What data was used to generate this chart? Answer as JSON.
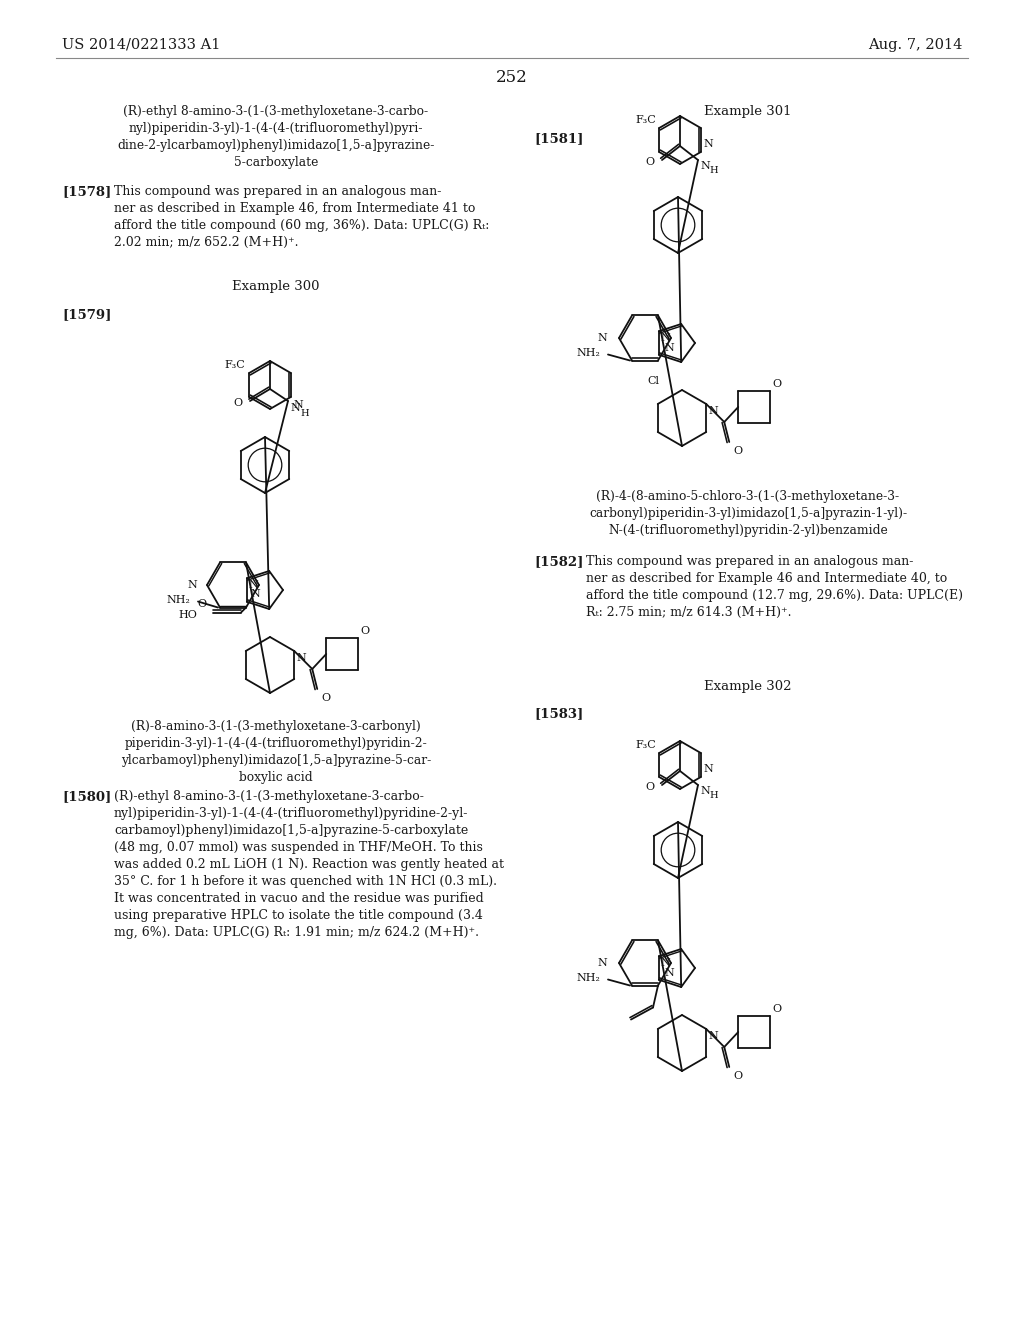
{
  "bg_color": "#ffffff",
  "header_left": "US 2014/0221333 A1",
  "header_right": "Aug. 7, 2014",
  "page_number": "252",
  "font_color": "#1a1a1a",
  "left_compound_name_top": "(R)-ethyl 8-amino-3-(1-(3-methyloxetane-3-carbo-\nnyl)piperidin-3-yl)-1-(4-(4-(trifluoromethyl)pyri-\ndine-2-ylcarbamoyl)phenyl)imidazo[1,5-a]pyrazine-\n5-carboxylate",
  "ref_1578_label": "[1578]",
  "ref_1578_text": "This compound was prepared in an analogous man-\nner as described in Example 46, from Intermediate 41 to\nafford the title compound (60 mg, 36%). Data: UPLC(G) Rₜ:\n2.02 min; m/z 652.2 (M+H)⁺.",
  "example_300": "Example 300",
  "ref_1579_label": "[1579]",
  "left_compound_name_bottom": "(R)-8-amino-3-(1-(3-methyloxetane-3-carbonyl)\npiperidin-3-yl)-1-(4-(4-(trifluoromethyl)pyridin-2-\nylcarbamoyl)phenyl)imidazo[1,5-a]pyrazine-5-car-\nboxylic acid",
  "ref_1580_label": "[1580]",
  "ref_1580_text": "(R)-ethyl 8-amino-3-(1-(3-methyloxetane-3-carbo-\nnyl)piperidin-3-yl)-1-(4-(4-(trifluoromethyl)pyridine-2-yl-\ncarbamoyl)phenyl)imidazo[1,5-a]pyrazine-5-carboxylate\n(48 mg, 0.07 mmol) was suspended in THF/MeOH. To this\nwas added 0.2 mL LiOH (1 N). Reaction was gently heated at\n35° C. for 1 h before it was quenched with 1N HCl (0.3 mL).\nIt was concentrated in vacuo and the residue was purified\nusing preparative HPLC to isolate the title compound (3.4\nmg, 6%). Data: UPLC(G) Rₜ: 1.91 min; m/z 624.2 (M+H)⁺.",
  "example_301": "Example 301",
  "ref_1581_label": "[1581]",
  "right_compound_name_top": "(R)-4-(8-amino-5-chloro-3-(1-(3-methyloxetane-3-\ncarbonyl)piperidin-3-yl)imidazo[1,5-a]pyrazin-1-yl)-\nN-(4-(trifluoromethyl)pyridin-2-yl)benzamide",
  "ref_1582_label": "[1582]",
  "ref_1582_text": "This compound was prepared in an analogous man-\nner as described for Example 46 and Intermediate 40, to\nafford the title compound (12.7 mg, 29.6%). Data: UPLC(E)\nRₜ: 2.75 min; m/z 614.3 (M+H)⁺.",
  "example_302": "Example 302",
  "ref_1583_label": "[1583]"
}
